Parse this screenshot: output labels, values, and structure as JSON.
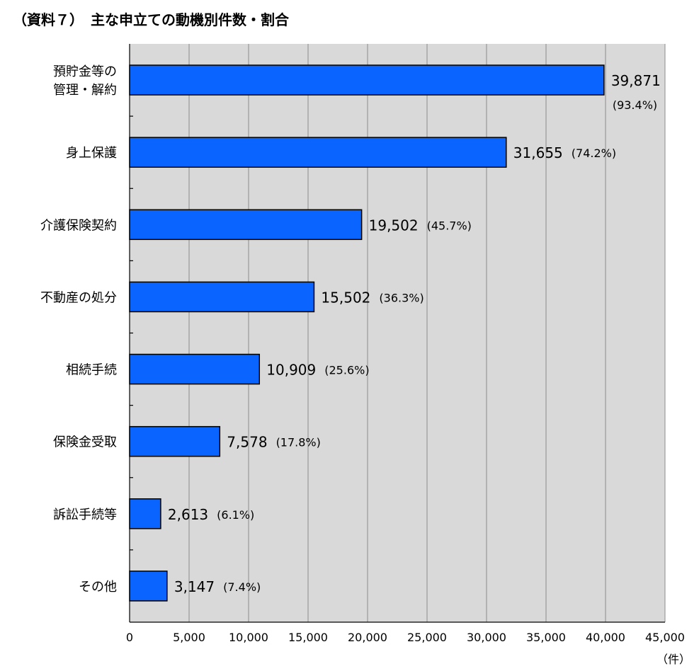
{
  "chart_data": {
    "type": "bar",
    "orientation": "horizontal",
    "title": "（資料７）　主な申立ての動機別件数・割合",
    "categories": [
      "預貯金等の\n管理・解約",
      "身上保護",
      "介護保険契約",
      "不動産の処分",
      "相続手続",
      "保険金受取",
      "訴訟手続等",
      "その他"
    ],
    "values": [
      39871,
      31655,
      19502,
      15502,
      10909,
      7578,
      2613,
      3147
    ],
    "value_labels": [
      "39,871",
      "31,655",
      "19,502",
      "15,502",
      "10,909",
      "7,578",
      "2,613",
      "3,147"
    ],
    "percent_labels": [
      "(93.4%)",
      "(74.2%)",
      "(45.7%)",
      "(36.3%)",
      "(25.6%)",
      "(17.8%)",
      "(6.1%)",
      "(7.4%)"
    ],
    "xlim": [
      0,
      45000
    ],
    "x_ticks": [
      0,
      5000,
      10000,
      15000,
      20000,
      25000,
      30000,
      35000,
      40000,
      45000
    ],
    "x_tick_labels": [
      "0",
      "5,000",
      "10,000",
      "15,000",
      "20,000",
      "25,000",
      "30,000",
      "35,000",
      "40,000",
      "45,000"
    ],
    "xunit": "（件）",
    "grid": "vertical",
    "legend": "none",
    "colors": {
      "bar": "#0a64ff",
      "plot_background": "#d9d9d9",
      "grid": "#8c8c8c",
      "bar_outline": "#000000"
    }
  }
}
